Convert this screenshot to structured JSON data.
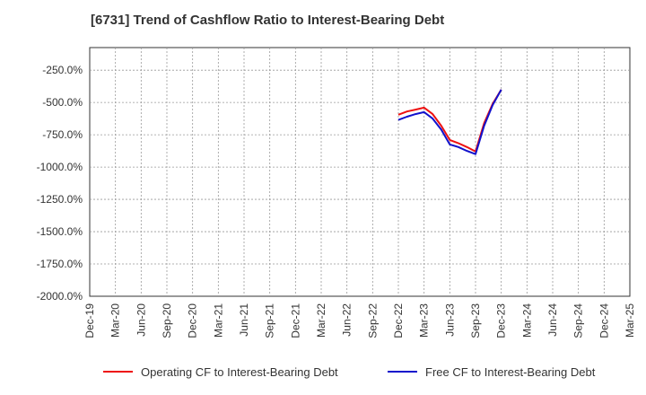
{
  "chart_data": {
    "type": "line",
    "title": "[6731]  Trend of Cashflow Ratio to Interest-Bearing Debt",
    "xlabel": "",
    "ylabel": "",
    "grid": true,
    "legend_position": "bottom",
    "x_ticks": [
      "Dec-19",
      "Mar-20",
      "Jun-20",
      "Sep-20",
      "Dec-20",
      "Mar-21",
      "Jun-21",
      "Sep-21",
      "Dec-21",
      "Mar-22",
      "Jun-22",
      "Sep-22",
      "Dec-22",
      "Mar-23",
      "Jun-23",
      "Sep-23",
      "Dec-23",
      "Mar-24",
      "Jun-24",
      "Sep-24",
      "Dec-24",
      "Mar-25"
    ],
    "y_ticks": [
      "-250.0%",
      "-500.0%",
      "-750.0%",
      "-1000.0%",
      "-1250.0%",
      "-1500.0%",
      "-1750.0%",
      "-2000.0%"
    ],
    "y_tick_values": [
      -250,
      -500,
      -750,
      -1000,
      -1250,
      -1500,
      -1750,
      -2000
    ],
    "ylim": [
      -2000,
      -75
    ],
    "xlim": [
      "Dec-19",
      "Mar-25"
    ],
    "series": [
      {
        "name": "Operating CF to Interest-Bearing Debt",
        "color": "#ee1111",
        "x": [
          "Dec-22",
          "Jan-23",
          "Feb-23",
          "Mar-23",
          "Apr-23",
          "May-23",
          "Jun-23",
          "Jul-23",
          "Aug-23",
          "Sep-23",
          "Oct-23",
          "Nov-23",
          "Dec-23"
        ],
        "values": [
          -595,
          -570,
          -555,
          -540,
          -590,
          -680,
          -790,
          -815,
          -845,
          -880,
          -660,
          -510,
          -400
        ]
      },
      {
        "name": "Free CF to Interest-Bearing Debt",
        "color": "#1111cc",
        "x": [
          "Dec-22",
          "Jan-23",
          "Feb-23",
          "Mar-23",
          "Apr-23",
          "May-23",
          "Jun-23",
          "Jul-23",
          "Aug-23",
          "Sep-23",
          "Oct-23",
          "Nov-23",
          "Dec-23"
        ],
        "values": [
          -635,
          -610,
          -590,
          -575,
          -625,
          -710,
          -825,
          -845,
          -875,
          -900,
          -680,
          -520,
          -400
        ]
      }
    ]
  }
}
